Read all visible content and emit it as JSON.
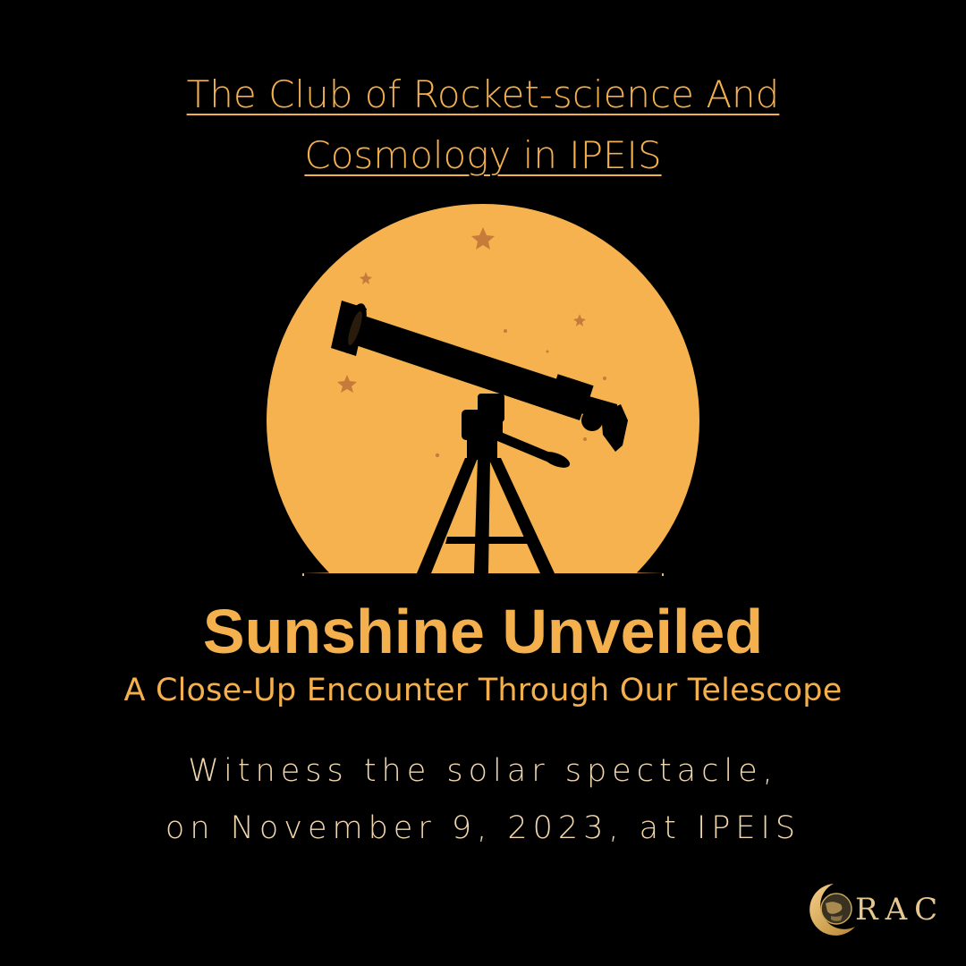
{
  "club_title": {
    "line1": "The Club of Rocket-science And",
    "line2": "Cosmology in IPEIS"
  },
  "event": {
    "title": "Sunshine Unveiled",
    "subtitle": "A Close-Up Encounter Through Our Telescope",
    "detail_line1": "Witness the solar spectacle,",
    "detail_line2": "on November 9, 2023, at IPEIS"
  },
  "logo": {
    "text": "RAC",
    "emblem_icon": "crescent-moon-globe-icon"
  },
  "illustration": {
    "icon": "telescope-silhouette-icon",
    "sun_icon": "sun-disc-icon",
    "star_icon": "star-icon"
  },
  "colors": {
    "background": "#000000",
    "accent": "#f5b04e",
    "sun": "#f6b24f",
    "star": "#c77b3b",
    "detail_text": "#f2d7ae"
  }
}
